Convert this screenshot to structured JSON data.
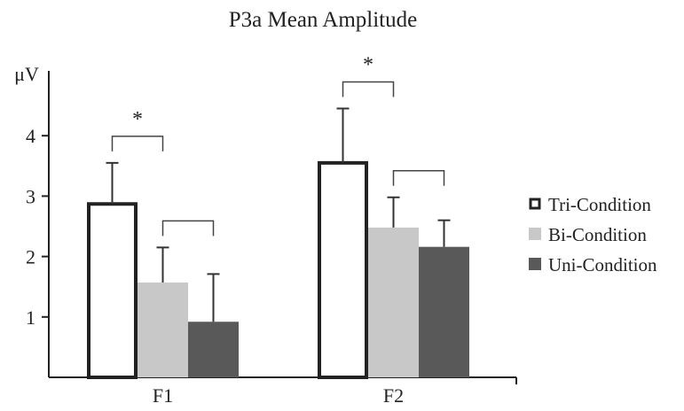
{
  "chart_data": {
    "type": "bar",
    "title": "P3a Mean Amplitude",
    "xlabel": "",
    "ylabel": "μV",
    "ylim": [
      0,
      5
    ],
    "yticks": [
      "1",
      "2",
      "3",
      "4"
    ],
    "categories": [
      "F1",
      "F2"
    ],
    "series": [
      {
        "name": "Tri-Condition",
        "values": [
          2.87,
          3.55
        ],
        "errors": [
          0.68,
          0.9
        ],
        "color": "#ffffff",
        "stroke": "#222222"
      },
      {
        "name": "Bi-Condition",
        "values": [
          1.57,
          2.48
        ],
        "errors": [
          0.58,
          0.5
        ],
        "color": "#c8c8c8"
      },
      {
        "name": "Uni-Condition",
        "values": [
          0.92,
          2.16
        ],
        "errors": [
          0.79,
          0.44
        ],
        "color": "#595959"
      }
    ],
    "significance": [
      {
        "category": "F1",
        "between": [
          "Tri-Condition",
          "Bi-Condition"
        ],
        "label": "*"
      },
      {
        "category": "F1",
        "between": [
          "Bi-Condition",
          "Uni-Condition"
        ],
        "label": ""
      },
      {
        "category": "F2",
        "between": [
          "Tri-Condition",
          "Bi-Condition"
        ],
        "label": "*"
      },
      {
        "category": "F2",
        "between": [
          "Bi-Condition",
          "Uni-Condition"
        ],
        "label": ""
      }
    ],
    "legend": {
      "position": "right"
    },
    "grid": false
  }
}
